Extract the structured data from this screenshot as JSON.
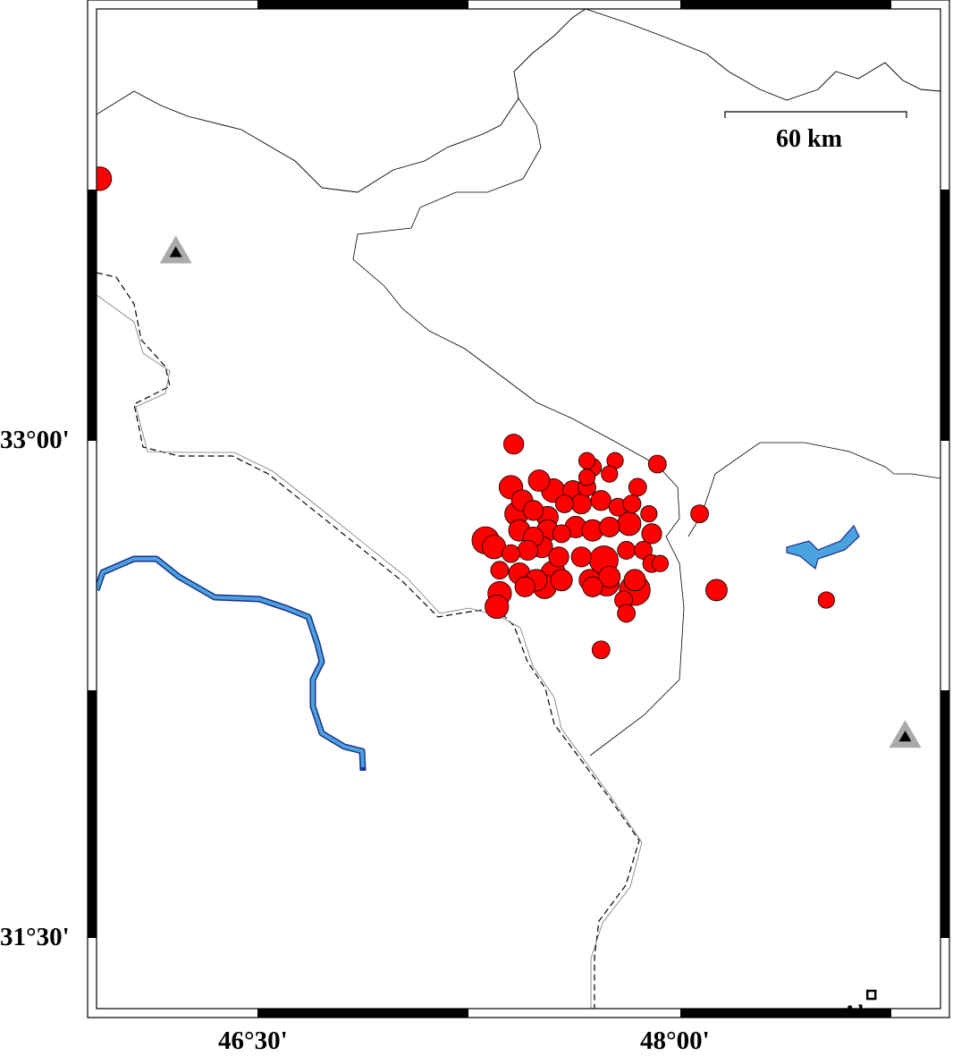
{
  "map": {
    "lat_labels": [
      "33°00'",
      "31°30'"
    ],
    "lon_labels": [
      "46°30'",
      "48°00'"
    ],
    "scale_bar": {
      "label": "60 km"
    },
    "colors": {
      "event": "#ff0000",
      "river": "#4aa3df",
      "river_edge": "#1a2f8a",
      "station": "#aaaaaa",
      "station_inner": "#000000"
    },
    "city": {
      "name": "Ahvaz",
      "lon": 48.68,
      "lat": 31.33
    },
    "stations": [
      {
        "lon": 46.21,
        "lat": 33.57
      },
      {
        "lon": 48.8,
        "lat": 32.11
      }
    ],
    "events_fields": [
      "lon",
      "lat",
      "mag"
    ],
    "events": [
      [
        47.41,
        32.99,
        4.8
      ],
      [
        47.67,
        32.94,
        4.3
      ],
      [
        47.77,
        32.94,
        4.3
      ],
      [
        47.69,
        32.92,
        4.5
      ],
      [
        47.75,
        32.9,
        4.3
      ],
      [
        47.67,
        32.89,
        4.3
      ],
      [
        47.4,
        32.86,
        5.3
      ],
      [
        47.5,
        32.88,
        5.0
      ],
      [
        47.55,
        32.85,
        5.3
      ],
      [
        47.62,
        32.85,
        4.8
      ],
      [
        47.67,
        32.86,
        4.5
      ],
      [
        47.85,
        32.86,
        4.5
      ],
      [
        47.44,
        32.82,
        5.0
      ],
      [
        47.48,
        32.79,
        4.8
      ],
      [
        47.53,
        32.77,
        5.0
      ],
      [
        47.59,
        32.81,
        4.5
      ],
      [
        47.65,
        32.81,
        4.8
      ],
      [
        47.72,
        32.82,
        4.8
      ],
      [
        47.78,
        32.8,
        4.5
      ],
      [
        47.83,
        32.81,
        4.5
      ],
      [
        47.89,
        32.78,
        4.3
      ],
      [
        47.42,
        32.78,
        5.3
      ],
      [
        47.43,
        32.73,
        5.0
      ],
      [
        47.48,
        32.71,
        4.8
      ],
      [
        47.53,
        32.73,
        5.0
      ],
      [
        47.58,
        32.72,
        4.5
      ],
      [
        47.63,
        32.74,
        5.0
      ],
      [
        47.69,
        32.73,
        5.0
      ],
      [
        47.75,
        32.74,
        4.8
      ],
      [
        47.82,
        32.75,
        5.3
      ],
      [
        47.9,
        32.72,
        4.8
      ],
      [
        47.31,
        32.7,
        5.8
      ],
      [
        47.34,
        32.68,
        5.3
      ],
      [
        47.4,
        32.66,
        4.5
      ],
      [
        47.46,
        32.67,
        4.8
      ],
      [
        47.51,
        32.68,
        5.0
      ],
      [
        47.57,
        32.65,
        4.8
      ],
      [
        47.65,
        32.65,
        4.8
      ],
      [
        47.73,
        32.64,
        6.0
      ],
      [
        47.81,
        32.67,
        4.5
      ],
      [
        47.87,
        32.67,
        4.5
      ],
      [
        47.36,
        32.61,
        4.5
      ],
      [
        47.43,
        32.6,
        5.0
      ],
      [
        47.49,
        32.58,
        5.0
      ],
      [
        47.55,
        32.6,
        5.5
      ],
      [
        47.58,
        32.58,
        5.0
      ],
      [
        47.68,
        32.58,
        5.0
      ],
      [
        47.75,
        32.59,
        5.0
      ],
      [
        47.84,
        32.58,
        5.0
      ],
      [
        47.9,
        32.63,
        4.5
      ],
      [
        47.93,
        32.63,
        4.3
      ],
      [
        47.36,
        32.54,
        5.3
      ],
      [
        47.35,
        32.5,
        5.3
      ],
      [
        47.45,
        32.56,
        4.8
      ],
      [
        47.52,
        32.56,
        5.3
      ],
      [
        47.69,
        32.56,
        4.8
      ],
      [
        47.74,
        32.57,
        5.5
      ],
      [
        47.84,
        32.55,
        6.3
      ],
      [
        47.8,
        32.52,
        4.5
      ],
      [
        47.81,
        32.48,
        4.5
      ],
      [
        47.92,
        32.93,
        4.5
      ],
      [
        48.07,
        32.78,
        4.5
      ],
      [
        48.13,
        32.55,
        5.0
      ],
      [
        48.52,
        32.52,
        4.3
      ],
      [
        47.72,
        32.37,
        4.5
      ],
      [
        45.94,
        33.79,
        5.3
      ]
    ]
  }
}
